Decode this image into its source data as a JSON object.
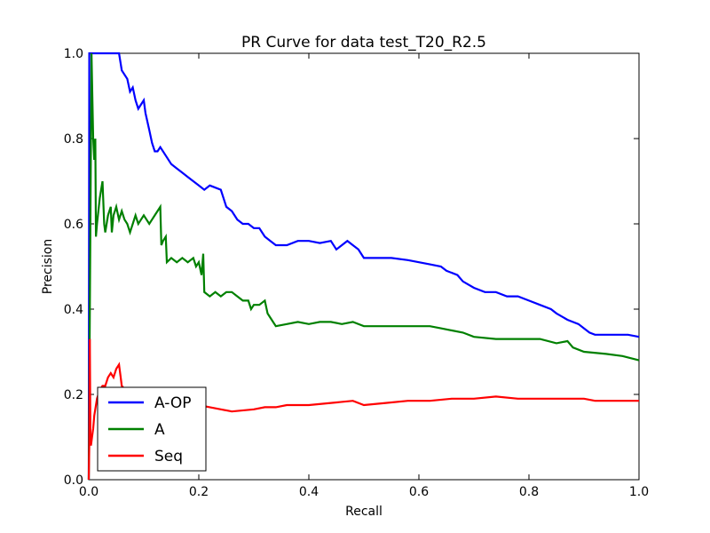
{
  "chart_data": {
    "type": "line",
    "title": "PR Curve for data test_T20_R2.5",
    "xlabel": "Recall",
    "ylabel": "Precision",
    "xlim": [
      0.0,
      1.0
    ],
    "ylim": [
      0.0,
      1.0
    ],
    "xticks": [
      "0.0",
      "0.2",
      "0.4",
      "0.6",
      "0.8",
      "1.0"
    ],
    "yticks": [
      "0.0",
      "0.2",
      "0.4",
      "0.6",
      "0.8",
      "1.0"
    ],
    "grid": false,
    "legend_position": "lower-left",
    "series": [
      {
        "name": "A-OP",
        "color": "#0000ff",
        "points": [
          [
            0.0,
            0.0
          ],
          [
            0.001,
            1.0
          ],
          [
            0.01,
            1.0
          ],
          [
            0.04,
            1.0
          ],
          [
            0.055,
            1.0
          ],
          [
            0.06,
            0.96
          ],
          [
            0.07,
            0.94
          ],
          [
            0.075,
            0.91
          ],
          [
            0.08,
            0.92
          ],
          [
            0.085,
            0.89
          ],
          [
            0.09,
            0.87
          ],
          [
            0.095,
            0.88
          ],
          [
            0.1,
            0.89
          ],
          [
            0.103,
            0.86
          ],
          [
            0.11,
            0.82
          ],
          [
            0.115,
            0.79
          ],
          [
            0.12,
            0.77
          ],
          [
            0.125,
            0.77
          ],
          [
            0.13,
            0.78
          ],
          [
            0.14,
            0.76
          ],
          [
            0.15,
            0.74
          ],
          [
            0.16,
            0.73
          ],
          [
            0.17,
            0.72
          ],
          [
            0.18,
            0.71
          ],
          [
            0.19,
            0.7
          ],
          [
            0.2,
            0.69
          ],
          [
            0.21,
            0.68
          ],
          [
            0.22,
            0.69
          ],
          [
            0.23,
            0.685
          ],
          [
            0.24,
            0.68
          ],
          [
            0.245,
            0.66
          ],
          [
            0.25,
            0.64
          ],
          [
            0.26,
            0.63
          ],
          [
            0.27,
            0.61
          ],
          [
            0.28,
            0.6
          ],
          [
            0.29,
            0.6
          ],
          [
            0.3,
            0.59
          ],
          [
            0.31,
            0.59
          ],
          [
            0.315,
            0.58
          ],
          [
            0.32,
            0.57
          ],
          [
            0.33,
            0.56
          ],
          [
            0.34,
            0.55
          ],
          [
            0.36,
            0.55
          ],
          [
            0.38,
            0.56
          ],
          [
            0.4,
            0.56
          ],
          [
            0.42,
            0.555
          ],
          [
            0.44,
            0.56
          ],
          [
            0.45,
            0.54
          ],
          [
            0.46,
            0.55
          ],
          [
            0.47,
            0.56
          ],
          [
            0.48,
            0.55
          ],
          [
            0.49,
            0.54
          ],
          [
            0.5,
            0.52
          ],
          [
            0.52,
            0.52
          ],
          [
            0.55,
            0.52
          ],
          [
            0.58,
            0.515
          ],
          [
            0.6,
            0.51
          ],
          [
            0.62,
            0.505
          ],
          [
            0.64,
            0.5
          ],
          [
            0.65,
            0.49
          ],
          [
            0.67,
            0.48
          ],
          [
            0.68,
            0.465
          ],
          [
            0.7,
            0.45
          ],
          [
            0.72,
            0.44
          ],
          [
            0.74,
            0.44
          ],
          [
            0.76,
            0.43
          ],
          [
            0.78,
            0.43
          ],
          [
            0.8,
            0.42
          ],
          [
            0.82,
            0.41
          ],
          [
            0.84,
            0.4
          ],
          [
            0.85,
            0.39
          ],
          [
            0.87,
            0.375
          ],
          [
            0.89,
            0.365
          ],
          [
            0.9,
            0.355
          ],
          [
            0.91,
            0.345
          ],
          [
            0.92,
            0.34
          ],
          [
            0.94,
            0.34
          ],
          [
            0.96,
            0.34
          ],
          [
            0.98,
            0.34
          ],
          [
            1.0,
            0.335
          ]
        ]
      },
      {
        "name": "A",
        "color": "#008000",
        "points": [
          [
            0.0,
            0.0
          ],
          [
            0.005,
            1.0
          ],
          [
            0.008,
            0.8
          ],
          [
            0.01,
            0.75
          ],
          [
            0.012,
            0.8
          ],
          [
            0.013,
            0.57
          ],
          [
            0.015,
            0.6
          ],
          [
            0.02,
            0.66
          ],
          [
            0.025,
            0.7
          ],
          [
            0.028,
            0.6
          ],
          [
            0.03,
            0.58
          ],
          [
            0.035,
            0.62
          ],
          [
            0.04,
            0.64
          ],
          [
            0.042,
            0.58
          ],
          [
            0.045,
            0.62
          ],
          [
            0.05,
            0.64
          ],
          [
            0.055,
            0.61
          ],
          [
            0.06,
            0.63
          ],
          [
            0.065,
            0.61
          ],
          [
            0.07,
            0.6
          ],
          [
            0.075,
            0.58
          ],
          [
            0.08,
            0.6
          ],
          [
            0.085,
            0.62
          ],
          [
            0.09,
            0.6
          ],
          [
            0.095,
            0.61
          ],
          [
            0.1,
            0.62
          ],
          [
            0.105,
            0.61
          ],
          [
            0.11,
            0.6
          ],
          [
            0.115,
            0.61
          ],
          [
            0.12,
            0.62
          ],
          [
            0.125,
            0.63
          ],
          [
            0.13,
            0.64
          ],
          [
            0.132,
            0.55
          ],
          [
            0.135,
            0.56
          ],
          [
            0.14,
            0.57
          ],
          [
            0.142,
            0.51
          ],
          [
            0.15,
            0.52
          ],
          [
            0.16,
            0.51
          ],
          [
            0.17,
            0.52
          ],
          [
            0.18,
            0.51
          ],
          [
            0.19,
            0.52
          ],
          [
            0.195,
            0.5
          ],
          [
            0.2,
            0.51
          ],
          [
            0.205,
            0.48
          ],
          [
            0.208,
            0.53
          ],
          [
            0.21,
            0.44
          ],
          [
            0.22,
            0.43
          ],
          [
            0.23,
            0.44
          ],
          [
            0.24,
            0.43
          ],
          [
            0.25,
            0.44
          ],
          [
            0.26,
            0.44
          ],
          [
            0.27,
            0.43
          ],
          [
            0.28,
            0.42
          ],
          [
            0.29,
            0.42
          ],
          [
            0.295,
            0.4
          ],
          [
            0.3,
            0.41
          ],
          [
            0.31,
            0.41
          ],
          [
            0.32,
            0.42
          ],
          [
            0.325,
            0.39
          ],
          [
            0.33,
            0.38
          ],
          [
            0.34,
            0.36
          ],
          [
            0.36,
            0.365
          ],
          [
            0.38,
            0.37
          ],
          [
            0.4,
            0.365
          ],
          [
            0.42,
            0.37
          ],
          [
            0.44,
            0.37
          ],
          [
            0.46,
            0.365
          ],
          [
            0.48,
            0.37
          ],
          [
            0.5,
            0.36
          ],
          [
            0.54,
            0.36
          ],
          [
            0.58,
            0.36
          ],
          [
            0.62,
            0.36
          ],
          [
            0.64,
            0.355
          ],
          [
            0.66,
            0.35
          ],
          [
            0.68,
            0.345
          ],
          [
            0.7,
            0.335
          ],
          [
            0.74,
            0.33
          ],
          [
            0.78,
            0.33
          ],
          [
            0.82,
            0.33
          ],
          [
            0.85,
            0.32
          ],
          [
            0.87,
            0.325
          ],
          [
            0.88,
            0.31
          ],
          [
            0.9,
            0.3
          ],
          [
            0.94,
            0.295
          ],
          [
            0.97,
            0.29
          ],
          [
            1.0,
            0.28
          ]
        ]
      },
      {
        "name": "Seq",
        "color": "#ff0000",
        "points": [
          [
            0.0,
            0.0
          ],
          [
            0.001,
            0.08
          ],
          [
            0.002,
            0.33
          ],
          [
            0.003,
            0.1
          ],
          [
            0.004,
            0.08
          ],
          [
            0.006,
            0.1
          ],
          [
            0.008,
            0.12
          ],
          [
            0.01,
            0.15
          ],
          [
            0.015,
            0.19
          ],
          [
            0.02,
            0.21
          ],
          [
            0.025,
            0.22
          ],
          [
            0.03,
            0.22
          ],
          [
            0.035,
            0.24
          ],
          [
            0.04,
            0.25
          ],
          [
            0.045,
            0.24
          ],
          [
            0.05,
            0.26
          ],
          [
            0.055,
            0.27
          ],
          [
            0.058,
            0.24
          ],
          [
            0.06,
            0.22
          ],
          [
            0.08,
            0.19
          ],
          [
            0.1,
            0.18
          ],
          [
            0.14,
            0.175
          ],
          [
            0.18,
            0.18
          ],
          [
            0.2,
            0.175
          ],
          [
            0.22,
            0.17
          ],
          [
            0.24,
            0.165
          ],
          [
            0.26,
            0.16
          ],
          [
            0.3,
            0.165
          ],
          [
            0.32,
            0.17
          ],
          [
            0.34,
            0.17
          ],
          [
            0.36,
            0.175
          ],
          [
            0.4,
            0.175
          ],
          [
            0.44,
            0.18
          ],
          [
            0.48,
            0.185
          ],
          [
            0.5,
            0.175
          ],
          [
            0.54,
            0.18
          ],
          [
            0.58,
            0.185
          ],
          [
            0.62,
            0.185
          ],
          [
            0.66,
            0.19
          ],
          [
            0.7,
            0.19
          ],
          [
            0.74,
            0.195
          ],
          [
            0.78,
            0.19
          ],
          [
            0.82,
            0.19
          ],
          [
            0.86,
            0.19
          ],
          [
            0.9,
            0.19
          ],
          [
            0.92,
            0.185
          ],
          [
            0.96,
            0.185
          ],
          [
            1.0,
            0.185
          ]
        ]
      }
    ]
  }
}
